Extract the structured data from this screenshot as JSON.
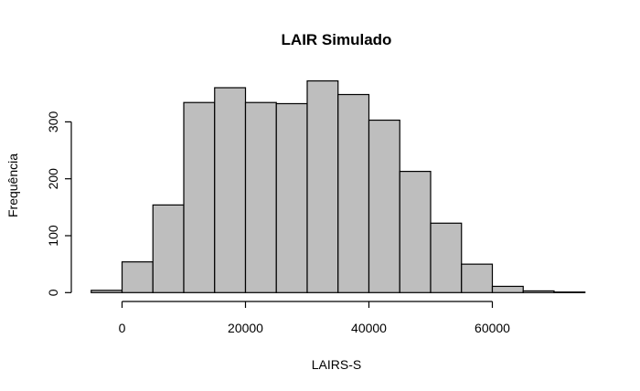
{
  "chart_data": {
    "type": "bar",
    "subtype": "histogram",
    "title": "LAIR Simulado",
    "xlabel": "LAIRS-S",
    "ylabel": "Frequência",
    "bin_width": 5000,
    "bin_edges": [
      -5000,
      0,
      5000,
      10000,
      15000,
      20000,
      25000,
      30000,
      35000,
      40000,
      45000,
      50000,
      55000,
      60000,
      65000,
      70000,
      75000
    ],
    "categories": [
      "-5000–0",
      "0–5000",
      "5000–10000",
      "10000–15000",
      "15000–20000",
      "20000–25000",
      "25000–30000",
      "30000–35000",
      "35000–40000",
      "40000–45000",
      "45000–50000",
      "50000–55000",
      "55000–60000",
      "60000–65000",
      "65000–70000",
      "70000–75000"
    ],
    "values": [
      4,
      54,
      154,
      334,
      360,
      334,
      332,
      372,
      348,
      303,
      213,
      122,
      50,
      11,
      3,
      1
    ],
    "x_ticks": [
      0,
      20000,
      40000,
      60000
    ],
    "x_tick_labels": [
      "0",
      "20000",
      "40000",
      "60000"
    ],
    "y_ticks": [
      0,
      100,
      200,
      300
    ],
    "y_tick_labels": [
      "0",
      "100",
      "200",
      "300"
    ],
    "xlim": [
      -5000,
      75000
    ],
    "ylim": [
      0,
      372
    ],
    "grid": false,
    "legend": null,
    "bar_fill": "#bebebe",
    "bar_stroke": "#000000"
  }
}
